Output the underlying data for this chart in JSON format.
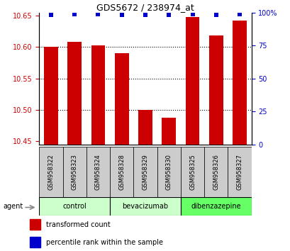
{
  "title": "GDS5672 / 238974_at",
  "samples": [
    "GSM958322",
    "GSM958323",
    "GSM958324",
    "GSM958328",
    "GSM958329",
    "GSM958330",
    "GSM958325",
    "GSM958326",
    "GSM958327"
  ],
  "bar_values": [
    10.6,
    10.608,
    10.603,
    10.59,
    10.5,
    10.487,
    10.648,
    10.618,
    10.642
  ],
  "percentile_values": [
    98,
    99,
    99,
    98,
    98,
    98,
    99,
    98,
    99
  ],
  "ylim_left": [
    10.445,
    10.655
  ],
  "ylim_right": [
    0,
    100
  ],
  "yticks_left": [
    10.45,
    10.5,
    10.55,
    10.6,
    10.65
  ],
  "yticks_right": [
    0,
    25,
    50,
    75,
    100
  ],
  "ytick_labels_right": [
    "0",
    "25",
    "50",
    "75",
    "100%"
  ],
  "groups": [
    {
      "label": "control",
      "indices": [
        0,
        1,
        2
      ],
      "color": "#ccffcc"
    },
    {
      "label": "bevacizumab",
      "indices": [
        3,
        4,
        5
      ],
      "color": "#ccffcc"
    },
    {
      "label": "dibenzazepine",
      "indices": [
        6,
        7,
        8
      ],
      "color": "#66ff66"
    }
  ],
  "bar_color": "#cc0000",
  "dot_color": "#0000cc",
  "bar_width": 0.6,
  "background_color": "#ffffff",
  "plot_bg_color": "#ffffff",
  "tick_color_left": "#cc0000",
  "tick_color_right": "#0000cc",
  "legend_items": [
    {
      "label": "transformed count",
      "color": "#cc0000"
    },
    {
      "label": "percentile rank within the sample",
      "color": "#0000cc"
    }
  ],
  "label_bg": "#cccccc",
  "label_fontsize": 6.0,
  "title_fontsize": 9
}
